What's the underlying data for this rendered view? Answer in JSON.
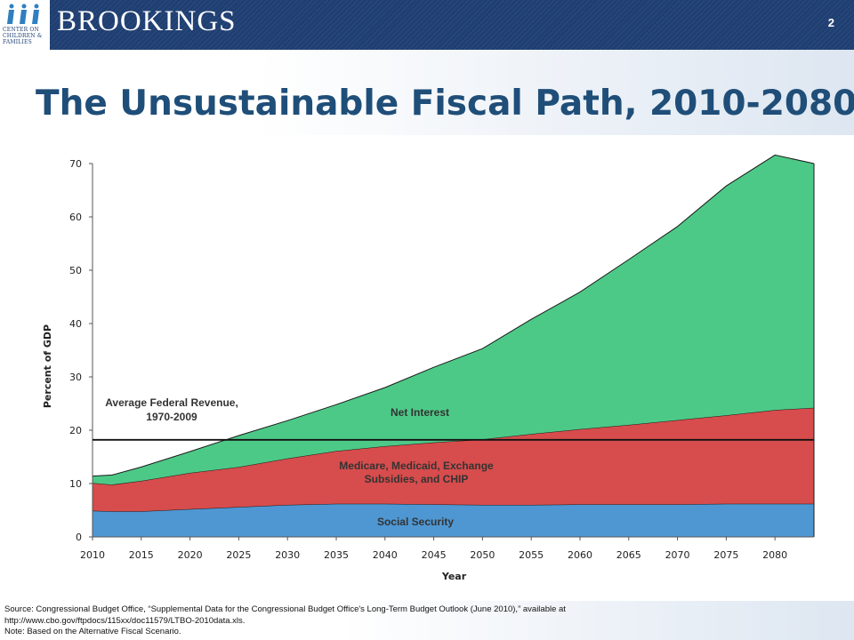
{
  "header": {
    "brand": "BROOKINGS",
    "logo_text": [
      "CENTER ON",
      "CHILDREN &",
      "FAMILIES"
    ],
    "page_number": "2",
    "colors": {
      "band": "#1f3f72"
    }
  },
  "title": "The Unsustainable Fiscal Path, 2010-2080",
  "chart_data": {
    "type": "area",
    "stacked": true,
    "xlabel": "Year",
    "ylabel": "Percent of GDP",
    "xlim": [
      2010,
      2084
    ],
    "ylim": [
      0,
      70
    ],
    "x_ticks": [
      2010,
      2015,
      2020,
      2025,
      2030,
      2035,
      2040,
      2045,
      2050,
      2055,
      2060,
      2065,
      2070,
      2075,
      2080
    ],
    "y_ticks": [
      0,
      10,
      20,
      30,
      40,
      50,
      60,
      70
    ],
    "grid": false,
    "legend": "none",
    "x": [
      2010,
      2012,
      2015,
      2020,
      2025,
      2030,
      2035,
      2040,
      2045,
      2050,
      2055,
      2060,
      2065,
      2070,
      2075,
      2080,
      2084
    ],
    "series": [
      {
        "name": "Social Security",
        "color": "#4e97d3",
        "values": [
          4.9,
          4.8,
          4.8,
          5.2,
          5.6,
          6.0,
          6.2,
          6.2,
          6.1,
          6.0,
          6.0,
          6.1,
          6.1,
          6.1,
          6.2,
          6.2,
          6.2
        ]
      },
      {
        "name": "Medicare, Medicaid, Exchange Subsidies, and CHIP",
        "color": "#d74c4c",
        "values": [
          5.2,
          5.0,
          5.7,
          6.8,
          7.5,
          8.7,
          9.9,
          10.8,
          11.6,
          12.3,
          13.3,
          14.1,
          14.9,
          15.8,
          16.6,
          17.6,
          18.0
        ]
      },
      {
        "name": "Net Interest",
        "color": "#4dc987",
        "values": [
          1.3,
          1.8,
          2.6,
          4.0,
          5.9,
          7.1,
          8.7,
          11.0,
          14.1,
          17.0,
          21.5,
          25.7,
          31.0,
          36.3,
          43.0,
          47.8,
          45.8
        ]
      }
    ],
    "reference_line": {
      "label": "Average Federal Revenue, 1970-2009",
      "value": 18.2
    },
    "annotations": {
      "net_interest": "Net Interest",
      "health": "Medicare, Medicaid, Exchange Subsidies, and CHIP",
      "social_security": "Social Security",
      "revenue_line_1": "Average Federal Revenue,",
      "revenue_line_2": "1970-2009"
    }
  },
  "footer": {
    "source_1": "Source: Congressional Budget Office, “Supplemental Data for the Congressional Budget Office's Long-Term Budget Outlook (June 2010),” available at",
    "source_2": "http://www.cbo.gov/ftpdocs/115xx/doc11579/LTBO-2010data.xls.",
    "note": "Note: Based on the Alternative Fiscal Scenario."
  }
}
